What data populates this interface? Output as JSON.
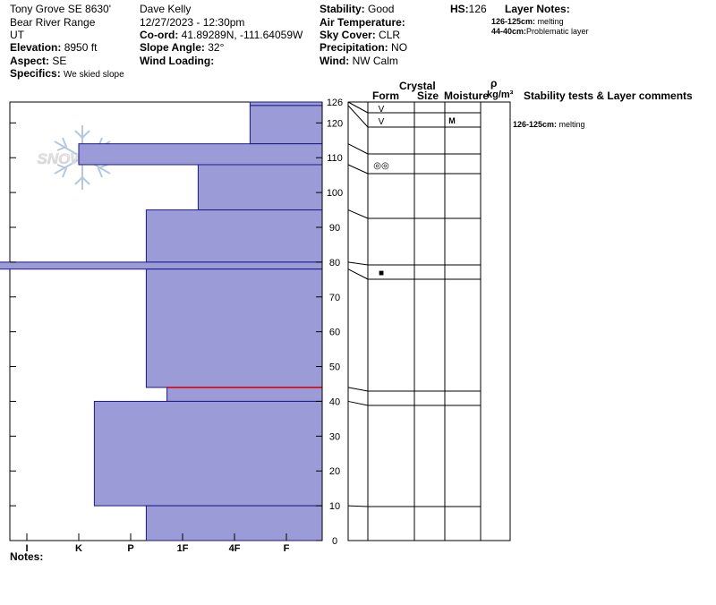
{
  "header": {
    "location": "Tony Grove SE 8630'",
    "range": "Bear River Range",
    "state": "UT",
    "elevation_label": "Elevation:",
    "elevation": "8950 ft",
    "aspect_label": "Aspect:",
    "aspect": "SE",
    "specifics_label": "Specifics:",
    "specifics": "We skied slope",
    "observer": "Dave Kelly",
    "datetime": "12/27/2023 - 12:30pm",
    "coord_label": "Co-ord:",
    "coord": "41.89289N, -111.64059W",
    "slope_label": "Slope Angle:",
    "slope": "32°",
    "wind_loading_label": "Wind Loading:",
    "stability_label": "Stability:",
    "stability": "Good",
    "air_temp_label": "Air Temperature:",
    "sky_label": "Sky Cover:",
    "sky": "CLR",
    "precip_label": "Precipitation:",
    "precip": "NO",
    "wind_label": "Wind:",
    "wind": "NW Calm",
    "hs_label": "HS:",
    "hs": "126",
    "layer_notes_title": "Layer Notes:",
    "layer_note_1_range": "126-125cm:",
    "layer_note_1_text": "melting",
    "layer_note_2_range": "44-40cm:",
    "layer_note_2_text": "Problematic layer"
  },
  "watermark": "SNOWPILOT",
  "columns": {
    "crystal": "Crystal",
    "form": "Form",
    "size": "Size",
    "moisture": "Moisture",
    "rho": "ρ",
    "density_unit": "kg/m³",
    "stability": "Stability tests & Layer comments"
  },
  "notes_label": "Notes:",
  "comments": [
    {
      "depth": 126,
      "range": "126-125cm:",
      "text": "melting"
    }
  ],
  "chart_data": {
    "type": "bar",
    "ylabel": "",
    "ylim": [
      0,
      126
    ],
    "hardness_scale": [
      "I",
      "K",
      "P",
      "1F",
      "4F",
      "F"
    ],
    "x_ticks": [
      {
        "label": "I",
        "value": 5
      },
      {
        "label": "K",
        "value": 4
      },
      {
        "label": "P",
        "value": 3
      },
      {
        "label": "1F",
        "value": 2
      },
      {
        "label": "4F",
        "value": 1
      },
      {
        "label": "F",
        "value": 0
      }
    ],
    "y_ticks": [
      0,
      10,
      20,
      30,
      40,
      50,
      60,
      70,
      80,
      90,
      100,
      110,
      120
    ],
    "y_top_label": 126,
    "layers": [
      {
        "top": 126,
        "bottom": 125,
        "hardness": 0.7
      },
      {
        "top": 125,
        "bottom": 114,
        "hardness": 0.7
      },
      {
        "top": 114,
        "bottom": 108,
        "hardness": 4.0
      },
      {
        "top": 108,
        "bottom": 95,
        "hardness": 1.7
      },
      {
        "top": 95,
        "bottom": 80,
        "hardness": 2.7
      },
      {
        "top": 80,
        "bottom": 78,
        "hardness": 5.7
      },
      {
        "top": 78,
        "bottom": 44,
        "hardness": 2.7
      },
      {
        "top": 44,
        "bottom": 40,
        "hardness": 2.3
      },
      {
        "top": 40,
        "bottom": 10,
        "hardness": 3.7
      },
      {
        "top": 10,
        "bottom": 0,
        "hardness": 2.7
      }
    ],
    "layer_boundaries": [
      126,
      125,
      114,
      108,
      95,
      80,
      78,
      44,
      40,
      10
    ],
    "red_line_depth": 44,
    "crystals": [
      {
        "depth": 126,
        "symbol": "V"
      },
      {
        "depth": 125,
        "symbol": "V"
      },
      {
        "depth": 111,
        "symbol": "◎◎"
      },
      {
        "depth": 79,
        "symbol": "■"
      }
    ],
    "moisture": [
      {
        "depth": 125,
        "value": "M"
      }
    ],
    "colors": {
      "layer_fill": "#9b9bd7",
      "layer_stroke": "#1a1a8a",
      "critical_line": "#e00000"
    }
  }
}
